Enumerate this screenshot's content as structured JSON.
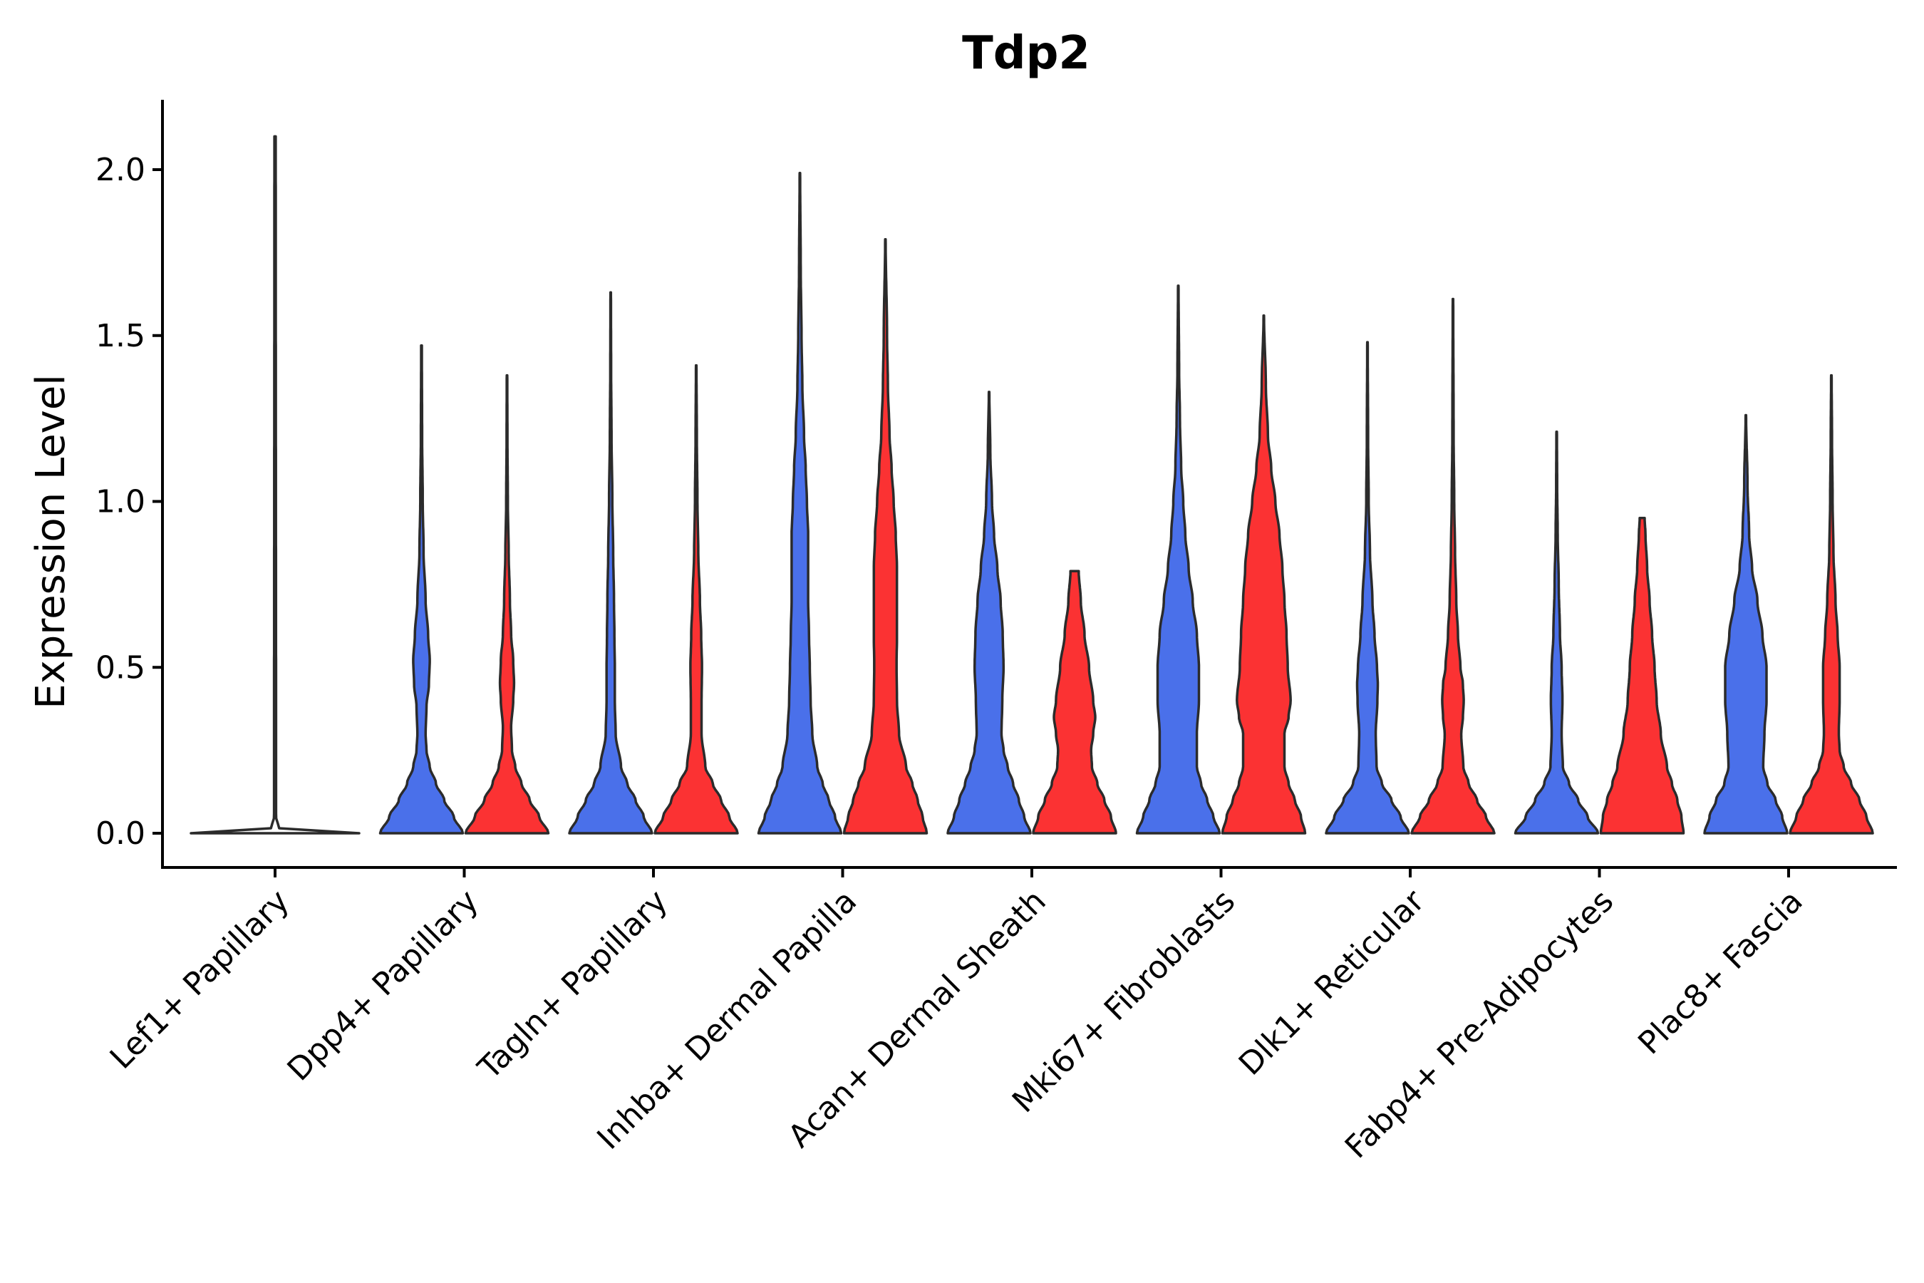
{
  "chart_data": {
    "type": "violin",
    "title": "Tdp2",
    "xlabel": "",
    "ylabel": "Expression Level",
    "ylim": [
      -0.11,
      2.22
    ],
    "yticks": [
      "0.0",
      "0.5",
      "1.0",
      "1.5",
      "2.0"
    ],
    "ytick_values": [
      0,
      0.5,
      1.0,
      1.5,
      2.0
    ],
    "grid": false,
    "legend": "none",
    "colors": {
      "blue": "#4a70ea",
      "red": "#fb3233",
      "outline": "#2b2b2b"
    },
    "categories": [
      "Lef1+ Papillary",
      "Dpp4+ Papillary",
      "Tagln+ Papillary",
      "Inhba+ Dermal Papilla",
      "Acan+ Dermal Sheath",
      "Mki67+ Fibroblasts",
      "Dlk1+ Reticular",
      "Fabp4+ Pre-Adipocytes",
      "Plac8+ Fascia"
    ],
    "violins": [
      {
        "category": "Lef1+ Papillary",
        "group": "single",
        "color": "#4a4a4a",
        "max": 2.1,
        "profile": [
          [
            0,
            1
          ],
          [
            0.012,
            0.05
          ],
          [
            0.05,
            0.012
          ],
          [
            2.1,
            0.008
          ]
        ]
      },
      {
        "category": "Dpp4+ Papillary",
        "group": "blue",
        "color": "#4a70ea",
        "max": 1.47,
        "profile": [
          [
            0,
            1
          ],
          [
            0.05,
            0.78
          ],
          [
            0.1,
            0.55
          ],
          [
            0.15,
            0.35
          ],
          [
            0.2,
            0.2
          ],
          [
            0.25,
            0.12
          ],
          [
            0.3,
            0.1
          ],
          [
            0.38,
            0.12
          ],
          [
            0.45,
            0.18
          ],
          [
            0.52,
            0.2
          ],
          [
            0.6,
            0.16
          ],
          [
            0.7,
            0.1
          ],
          [
            0.85,
            0.05
          ],
          [
            1.0,
            0.03
          ],
          [
            1.2,
            0.015
          ],
          [
            1.47,
            0.008
          ]
        ]
      },
      {
        "category": "Dpp4+ Papillary",
        "group": "red",
        "color": "#fb3233",
        "max": 1.38,
        "profile": [
          [
            0,
            1
          ],
          [
            0.05,
            0.78
          ],
          [
            0.1,
            0.55
          ],
          [
            0.15,
            0.35
          ],
          [
            0.2,
            0.2
          ],
          [
            0.25,
            0.12
          ],
          [
            0.32,
            0.1
          ],
          [
            0.4,
            0.15
          ],
          [
            0.45,
            0.17
          ],
          [
            0.52,
            0.15
          ],
          [
            0.6,
            0.1
          ],
          [
            0.7,
            0.07
          ],
          [
            0.85,
            0.04
          ],
          [
            1.0,
            0.02
          ],
          [
            1.2,
            0.01
          ],
          [
            1.38,
            0.006
          ]
        ]
      },
      {
        "category": "Tagln+ Papillary",
        "group": "blue",
        "color": "#4a70ea",
        "max": 1.63,
        "profile": [
          [
            0,
            1
          ],
          [
            0.05,
            0.8
          ],
          [
            0.1,
            0.6
          ],
          [
            0.15,
            0.4
          ],
          [
            0.2,
            0.25
          ],
          [
            0.3,
            0.12
          ],
          [
            0.4,
            0.1
          ],
          [
            0.5,
            0.1
          ],
          [
            0.6,
            0.09
          ],
          [
            0.7,
            0.08
          ],
          [
            0.85,
            0.06
          ],
          [
            1.0,
            0.04
          ],
          [
            1.2,
            0.02
          ],
          [
            1.4,
            0.01
          ],
          [
            1.63,
            0.006
          ]
        ]
      },
      {
        "category": "Tagln+ Papillary",
        "group": "red",
        "color": "#fb3233",
        "max": 1.41,
        "profile": [
          [
            0,
            1
          ],
          [
            0.05,
            0.8
          ],
          [
            0.1,
            0.6
          ],
          [
            0.15,
            0.4
          ],
          [
            0.2,
            0.22
          ],
          [
            0.3,
            0.13
          ],
          [
            0.4,
            0.13
          ],
          [
            0.5,
            0.14
          ],
          [
            0.6,
            0.12
          ],
          [
            0.7,
            0.09
          ],
          [
            0.85,
            0.05
          ],
          [
            1.0,
            0.03
          ],
          [
            1.2,
            0.015
          ],
          [
            1.41,
            0.006
          ]
        ]
      },
      {
        "category": "Inhba+ Dermal Papilla",
        "group": "blue",
        "color": "#4a70ea",
        "max": 1.99,
        "profile": [
          [
            0,
            1
          ],
          [
            0.05,
            0.85
          ],
          [
            0.1,
            0.7
          ],
          [
            0.15,
            0.55
          ],
          [
            0.2,
            0.42
          ],
          [
            0.3,
            0.3
          ],
          [
            0.4,
            0.26
          ],
          [
            0.5,
            0.24
          ],
          [
            0.6,
            0.22
          ],
          [
            0.7,
            0.2
          ],
          [
            0.8,
            0.2
          ],
          [
            0.9,
            0.2
          ],
          [
            1.0,
            0.17
          ],
          [
            1.1,
            0.14
          ],
          [
            1.2,
            0.1
          ],
          [
            1.35,
            0.06
          ],
          [
            1.5,
            0.04
          ],
          [
            1.7,
            0.02
          ],
          [
            1.99,
            0.006
          ]
        ]
      },
      {
        "category": "Inhba+ Dermal Papilla",
        "group": "red",
        "color": "#fb3233",
        "max": 1.79,
        "profile": [
          [
            0,
            1
          ],
          [
            0.05,
            0.9
          ],
          [
            0.1,
            0.78
          ],
          [
            0.15,
            0.65
          ],
          [
            0.2,
            0.5
          ],
          [
            0.3,
            0.33
          ],
          [
            0.4,
            0.28
          ],
          [
            0.5,
            0.27
          ],
          [
            0.6,
            0.28
          ],
          [
            0.7,
            0.28
          ],
          [
            0.8,
            0.28
          ],
          [
            0.9,
            0.25
          ],
          [
            1.0,
            0.2
          ],
          [
            1.1,
            0.15
          ],
          [
            1.2,
            0.1
          ],
          [
            1.35,
            0.06
          ],
          [
            1.5,
            0.04
          ],
          [
            1.79,
            0.006
          ]
        ]
      },
      {
        "category": "Acan+ Dermal Sheath",
        "group": "blue",
        "color": "#4a70ea",
        "max": 1.33,
        "profile": [
          [
            0,
            1
          ],
          [
            0.05,
            0.85
          ],
          [
            0.1,
            0.72
          ],
          [
            0.15,
            0.58
          ],
          [
            0.2,
            0.45
          ],
          [
            0.25,
            0.35
          ],
          [
            0.3,
            0.3
          ],
          [
            0.4,
            0.32
          ],
          [
            0.5,
            0.35
          ],
          [
            0.6,
            0.33
          ],
          [
            0.7,
            0.28
          ],
          [
            0.8,
            0.2
          ],
          [
            0.9,
            0.12
          ],
          [
            1.0,
            0.07
          ],
          [
            1.15,
            0.03
          ],
          [
            1.33,
            0.006
          ]
        ]
      },
      {
        "category": "Acan+ Dermal Sheath",
        "group": "red",
        "color": "#fb3233",
        "max": 0.79,
        "profile": [
          [
            0,
            1
          ],
          [
            0.05,
            0.88
          ],
          [
            0.1,
            0.72
          ],
          [
            0.15,
            0.55
          ],
          [
            0.2,
            0.42
          ],
          [
            0.25,
            0.4
          ],
          [
            0.3,
            0.45
          ],
          [
            0.35,
            0.5
          ],
          [
            0.4,
            0.45
          ],
          [
            0.5,
            0.35
          ],
          [
            0.6,
            0.24
          ],
          [
            0.7,
            0.15
          ],
          [
            0.79,
            0.1
          ]
        ]
      },
      {
        "category": "Mki67+ Fibroblasts",
        "group": "blue",
        "color": "#4a70ea",
        "max": 1.65,
        "profile": [
          [
            0,
            1
          ],
          [
            0.05,
            0.85
          ],
          [
            0.1,
            0.7
          ],
          [
            0.15,
            0.55
          ],
          [
            0.2,
            0.45
          ],
          [
            0.3,
            0.45
          ],
          [
            0.4,
            0.5
          ],
          [
            0.5,
            0.5
          ],
          [
            0.6,
            0.45
          ],
          [
            0.7,
            0.35
          ],
          [
            0.8,
            0.25
          ],
          [
            0.9,
            0.17
          ],
          [
            1.0,
            0.12
          ],
          [
            1.1,
            0.07
          ],
          [
            1.25,
            0.04
          ],
          [
            1.4,
            0.02
          ],
          [
            1.65,
            0.006
          ]
        ]
      },
      {
        "category": "Mki67+ Fibroblasts",
        "group": "red",
        "color": "#fb3233",
        "max": 1.56,
        "profile": [
          [
            0,
            1
          ],
          [
            0.05,
            0.9
          ],
          [
            0.1,
            0.75
          ],
          [
            0.15,
            0.6
          ],
          [
            0.2,
            0.5
          ],
          [
            0.3,
            0.5
          ],
          [
            0.35,
            0.6
          ],
          [
            0.4,
            0.65
          ],
          [
            0.5,
            0.58
          ],
          [
            0.6,
            0.55
          ],
          [
            0.7,
            0.5
          ],
          [
            0.8,
            0.45
          ],
          [
            0.9,
            0.38
          ],
          [
            1.0,
            0.28
          ],
          [
            1.1,
            0.18
          ],
          [
            1.2,
            0.1
          ],
          [
            1.35,
            0.05
          ],
          [
            1.56,
            0.006
          ]
        ]
      },
      {
        "category": "Dlk1+ Reticular",
        "group": "blue",
        "color": "#4a70ea",
        "max": 1.48,
        "profile": [
          [
            0,
            1
          ],
          [
            0.05,
            0.8
          ],
          [
            0.1,
            0.58
          ],
          [
            0.15,
            0.35
          ],
          [
            0.2,
            0.22
          ],
          [
            0.3,
            0.2
          ],
          [
            0.4,
            0.24
          ],
          [
            0.45,
            0.25
          ],
          [
            0.5,
            0.23
          ],
          [
            0.6,
            0.17
          ],
          [
            0.7,
            0.12
          ],
          [
            0.85,
            0.06
          ],
          [
            1.0,
            0.03
          ],
          [
            1.2,
            0.015
          ],
          [
            1.48,
            0.006
          ]
        ]
      },
      {
        "category": "Dlk1+ Reticular",
        "group": "red",
        "color": "#fb3233",
        "max": 1.61,
        "profile": [
          [
            0,
            1
          ],
          [
            0.05,
            0.8
          ],
          [
            0.1,
            0.58
          ],
          [
            0.15,
            0.38
          ],
          [
            0.2,
            0.25
          ],
          [
            0.3,
            0.2
          ],
          [
            0.35,
            0.24
          ],
          [
            0.4,
            0.26
          ],
          [
            0.45,
            0.24
          ],
          [
            0.5,
            0.18
          ],
          [
            0.6,
            0.12
          ],
          [
            0.7,
            0.08
          ],
          [
            0.85,
            0.05
          ],
          [
            1.0,
            0.03
          ],
          [
            1.2,
            0.015
          ],
          [
            1.61,
            0.006
          ]
        ]
      },
      {
        "category": "Fabp4+ Pre-Adipocytes",
        "group": "blue",
        "color": "#4a70ea",
        "max": 1.21,
        "profile": [
          [
            0,
            1
          ],
          [
            0.05,
            0.75
          ],
          [
            0.1,
            0.52
          ],
          [
            0.15,
            0.3
          ],
          [
            0.2,
            0.15
          ],
          [
            0.3,
            0.12
          ],
          [
            0.4,
            0.14
          ],
          [
            0.5,
            0.12
          ],
          [
            0.6,
            0.08
          ],
          [
            0.75,
            0.05
          ],
          [
            0.9,
            0.025
          ],
          [
            1.05,
            0.012
          ],
          [
            1.21,
            0.006
          ]
        ]
      },
      {
        "category": "Fabp4+ Pre-Adipocytes",
        "group": "red",
        "color": "#fb3233",
        "max": 0.95,
        "profile": [
          [
            0,
            1
          ],
          [
            0.05,
            0.95
          ],
          [
            0.1,
            0.85
          ],
          [
            0.15,
            0.72
          ],
          [
            0.2,
            0.6
          ],
          [
            0.3,
            0.45
          ],
          [
            0.4,
            0.35
          ],
          [
            0.5,
            0.3
          ],
          [
            0.6,
            0.24
          ],
          [
            0.7,
            0.18
          ],
          [
            0.8,
            0.12
          ],
          [
            0.9,
            0.08
          ],
          [
            0.95,
            0.06
          ]
        ]
      },
      {
        "category": "Plac8+ Fascia",
        "group": "blue",
        "color": "#4a70ea",
        "max": 1.26,
        "profile": [
          [
            0,
            1
          ],
          [
            0.05,
            0.88
          ],
          [
            0.1,
            0.72
          ],
          [
            0.15,
            0.52
          ],
          [
            0.2,
            0.42
          ],
          [
            0.3,
            0.45
          ],
          [
            0.4,
            0.5
          ],
          [
            0.5,
            0.5
          ],
          [
            0.6,
            0.4
          ],
          [
            0.7,
            0.28
          ],
          [
            0.8,
            0.15
          ],
          [
            0.9,
            0.08
          ],
          [
            1.05,
            0.04
          ],
          [
            1.26,
            0.006
          ]
        ]
      },
      {
        "category": "Plac8+ Fascia",
        "group": "red",
        "color": "#fb3233",
        "max": 1.38,
        "profile": [
          [
            0,
            1
          ],
          [
            0.05,
            0.85
          ],
          [
            0.1,
            0.68
          ],
          [
            0.15,
            0.48
          ],
          [
            0.2,
            0.3
          ],
          [
            0.25,
            0.2
          ],
          [
            0.3,
            0.18
          ],
          [
            0.4,
            0.2
          ],
          [
            0.5,
            0.2
          ],
          [
            0.6,
            0.15
          ],
          [
            0.7,
            0.1
          ],
          [
            0.85,
            0.05
          ],
          [
            1.0,
            0.03
          ],
          [
            1.2,
            0.015
          ],
          [
            1.38,
            0.006
          ]
        ]
      }
    ]
  }
}
